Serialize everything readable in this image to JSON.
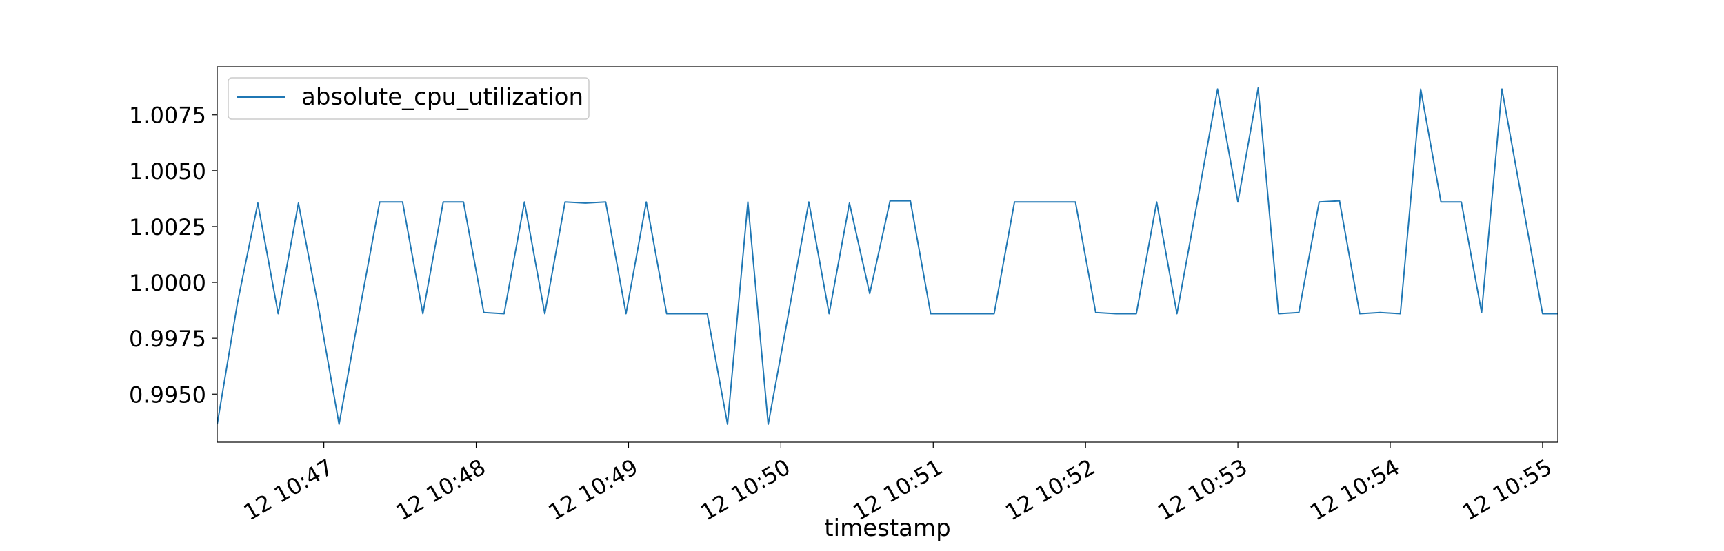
{
  "chart_data": {
    "type": "line",
    "title": "",
    "xlabel": "timestamp",
    "ylabel": "",
    "legend_position": "top-left",
    "grid": false,
    "line_color": "#1f77b4",
    "xlim": [
      "10:46:18",
      "10:55:06"
    ],
    "ylim": [
      0.99285,
      1.00965
    ],
    "x_ticks": [
      "10:47:00",
      "10:48:00",
      "10:49:00",
      "10:50:00",
      "10:51:00",
      "10:52:00",
      "10:53:00",
      "10:54:00",
      "10:55:00"
    ],
    "x_tick_labels": [
      "12 10:47",
      "12 10:48",
      "12 10:49",
      "12 10:50",
      "12 10:51",
      "12 10:52",
      "12 10:53",
      "12 10:54",
      "12 10:55"
    ],
    "y_ticks": [
      0.995,
      0.9975,
      1.0,
      1.0025,
      1.005,
      1.0075
    ],
    "y_tick_labels": [
      "0.9950",
      "0.9975",
      "1.0000",
      "1.0025",
      "1.0050",
      "1.0075"
    ],
    "series": [
      {
        "name": "absolute_cpu_utilization",
        "x": [
          "10:46:18",
          "10:46:26",
          "10:46:34",
          "10:46:42",
          "10:46:50",
          "10:46:58",
          "10:47:06",
          "10:47:14",
          "10:47:22",
          "10:47:31",
          "10:47:39",
          "10:47:47",
          "10:47:55",
          "10:48:03",
          "10:48:11",
          "10:48:19",
          "10:48:27",
          "10:48:35",
          "10:48:43",
          "10:48:51",
          "10:48:59",
          "10:49:07",
          "10:49:15",
          "10:49:23",
          "10:49:31",
          "10:49:39",
          "10:49:47",
          "10:49:55",
          "10:50:03",
          "10:50:11",
          "10:50:19",
          "10:50:27",
          "10:50:35",
          "10:50:43",
          "10:50:51",
          "10:50:59",
          "10:51:07",
          "10:51:16",
          "10:51:24",
          "10:51:32",
          "10:51:40",
          "10:51:48",
          "10:51:56",
          "10:52:04",
          "10:52:12",
          "10:52:20",
          "10:52:28",
          "10:52:36",
          "10:52:44",
          "10:52:52",
          "10:53:00",
          "10:53:08",
          "10:53:16",
          "10:53:24",
          "10:53:32",
          "10:53:40",
          "10:53:48",
          "10:53:56",
          "10:54:04",
          "10:54:12",
          "10:54:20",
          "10:54:28",
          "10:54:36",
          "10:54:44",
          "10:54:52",
          "10:55:00",
          "10:55:06"
        ],
        "values": [
          0.99365,
          0.9991,
          1.00355,
          0.9986,
          1.00355,
          0.9988,
          0.99365,
          0.9987,
          1.0036,
          1.0036,
          0.9986,
          1.0036,
          1.0036,
          0.99865,
          0.9986,
          1.0036,
          0.9986,
          1.0036,
          1.00355,
          1.0036,
          0.9986,
          1.0036,
          0.9986,
          0.9986,
          0.9986,
          0.99365,
          1.0036,
          0.99365,
          0.9986,
          1.0036,
          0.9986,
          1.00355,
          0.9995,
          1.00365,
          1.00365,
          0.9986,
          0.9986,
          0.9986,
          0.9986,
          1.0036,
          1.0036,
          1.0036,
          1.0036,
          0.99865,
          0.9986,
          0.9986,
          1.0036,
          0.9986,
          1.0036,
          1.00865,
          1.0036,
          1.0087,
          0.9986,
          0.99865,
          1.0036,
          1.00365,
          0.9986,
          0.99865,
          0.9986,
          1.00865,
          1.0036,
          1.0036,
          0.99865,
          1.00865,
          1.0036,
          0.9986,
          0.9986
        ]
      }
    ]
  }
}
